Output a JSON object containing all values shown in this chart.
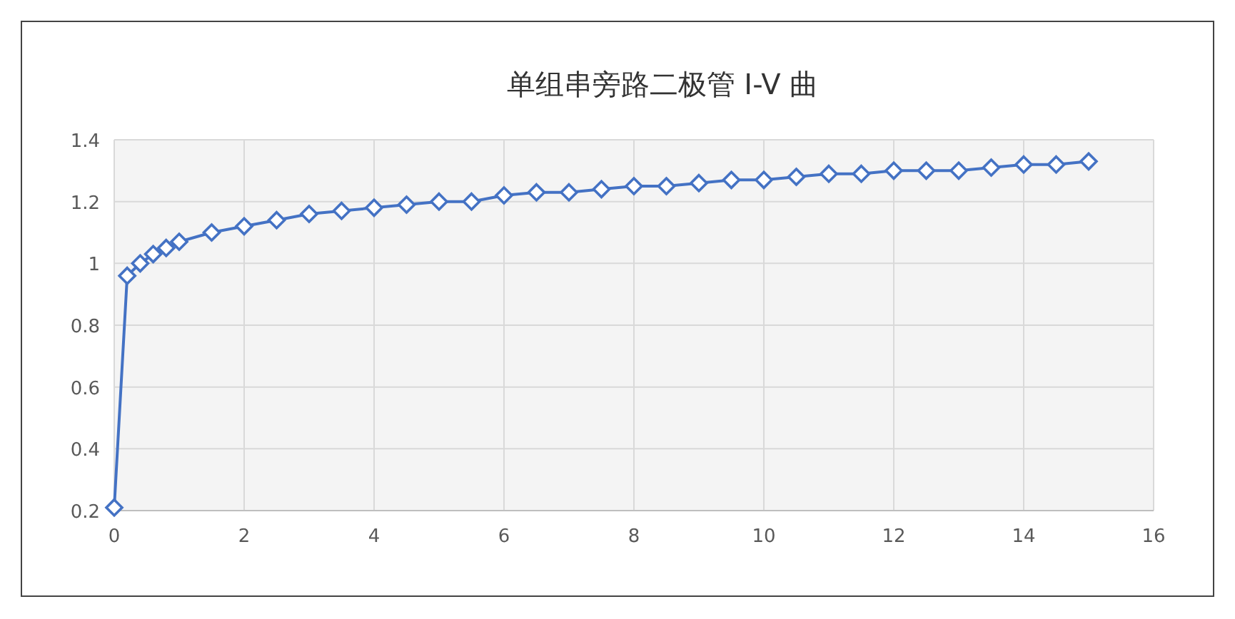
{
  "chart_data": {
    "type": "line",
    "title": "单组串旁路二极管 I-V 曲",
    "x": [
      0,
      0.2,
      0.4,
      0.6,
      0.8,
      1,
      1.5,
      2,
      2.5,
      3,
      3.5,
      4,
      4.5,
      5,
      5.5,
      6,
      6.5,
      7,
      7.5,
      8,
      8.5,
      9,
      9.5,
      10,
      10.5,
      11,
      11.5,
      12,
      12.5,
      13,
      13.5,
      14,
      14.5,
      15
    ],
    "series": [
      {
        "color": "#4472c4",
        "values": [
          0.21,
          0.96,
          1.0,
          1.03,
          1.05,
          1.07,
          1.1,
          1.12,
          1.14,
          1.16,
          1.17,
          1.18,
          1.19,
          1.2,
          1.2,
          1.22,
          1.23,
          1.23,
          1.24,
          1.25,
          1.25,
          1.26,
          1.27,
          1.27,
          1.28,
          1.29,
          1.29,
          1.3,
          1.3,
          1.3,
          1.31,
          1.32,
          1.32,
          1.33
        ]
      }
    ],
    "xlim": [
      0,
      16
    ],
    "xticks": [
      0,
      2,
      4,
      6,
      8,
      10,
      12,
      14,
      16
    ],
    "ylim": [
      0.2,
      1.4
    ],
    "yticks": [
      0.2,
      0.4,
      0.6,
      0.8,
      1,
      1.2,
      1.4
    ],
    "grid": true,
    "marker": "diamond",
    "line_style": "solid"
  }
}
